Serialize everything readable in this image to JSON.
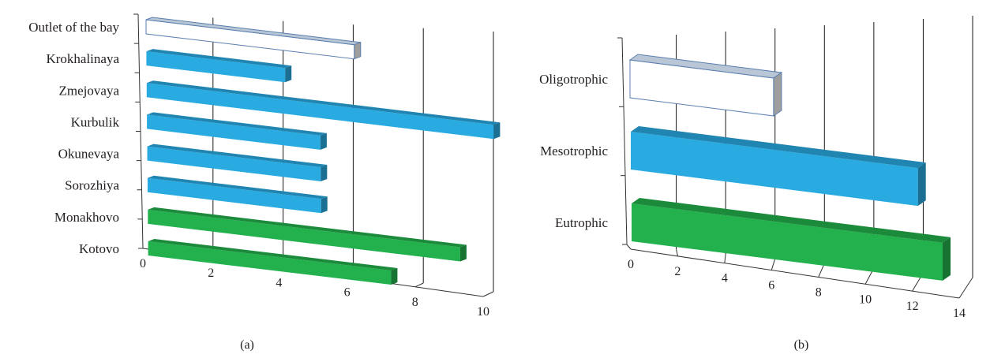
{
  "chart_data": [
    {
      "type": "bar",
      "orientation": "horizontal",
      "style": "3d",
      "panel_label": "(a)",
      "categories": [
        "Outlet of the bay",
        "Krokhalinaya",
        "Zmejovaya",
        "Kurbulik",
        "Okunevaya",
        "Sorozhiya",
        "Monakhovo",
        "Kotovo"
      ],
      "values": [
        6,
        4,
        10,
        5,
        5,
        5,
        9,
        7
      ],
      "colors": [
        "#ffffff",
        "#29abe2",
        "#29abe2",
        "#29abe2",
        "#29abe2",
        "#29abe2",
        "#22b14c",
        "#22b14c"
      ],
      "xlim": [
        0,
        10
      ],
      "xticks": [
        "0",
        "2",
        "4",
        "6",
        "8",
        "10"
      ],
      "xlabel": "",
      "ylabel": "",
      "title": "",
      "grid": true
    },
    {
      "type": "bar",
      "orientation": "horizontal",
      "style": "3d",
      "panel_label": "(b)",
      "categories": [
        "Oligotrophic",
        "Mesotrophic",
        "Eutrophic"
      ],
      "values": [
        6,
        12,
        13
      ],
      "colors": [
        "#ffffff",
        "#29abe2",
        "#22b14c"
      ],
      "xlim": [
        0,
        14
      ],
      "xticks": [
        "0",
        "2",
        "4",
        "6",
        "8",
        "10",
        "12",
        "14"
      ],
      "xlabel": "",
      "ylabel": "",
      "title": "",
      "grid": true
    }
  ]
}
